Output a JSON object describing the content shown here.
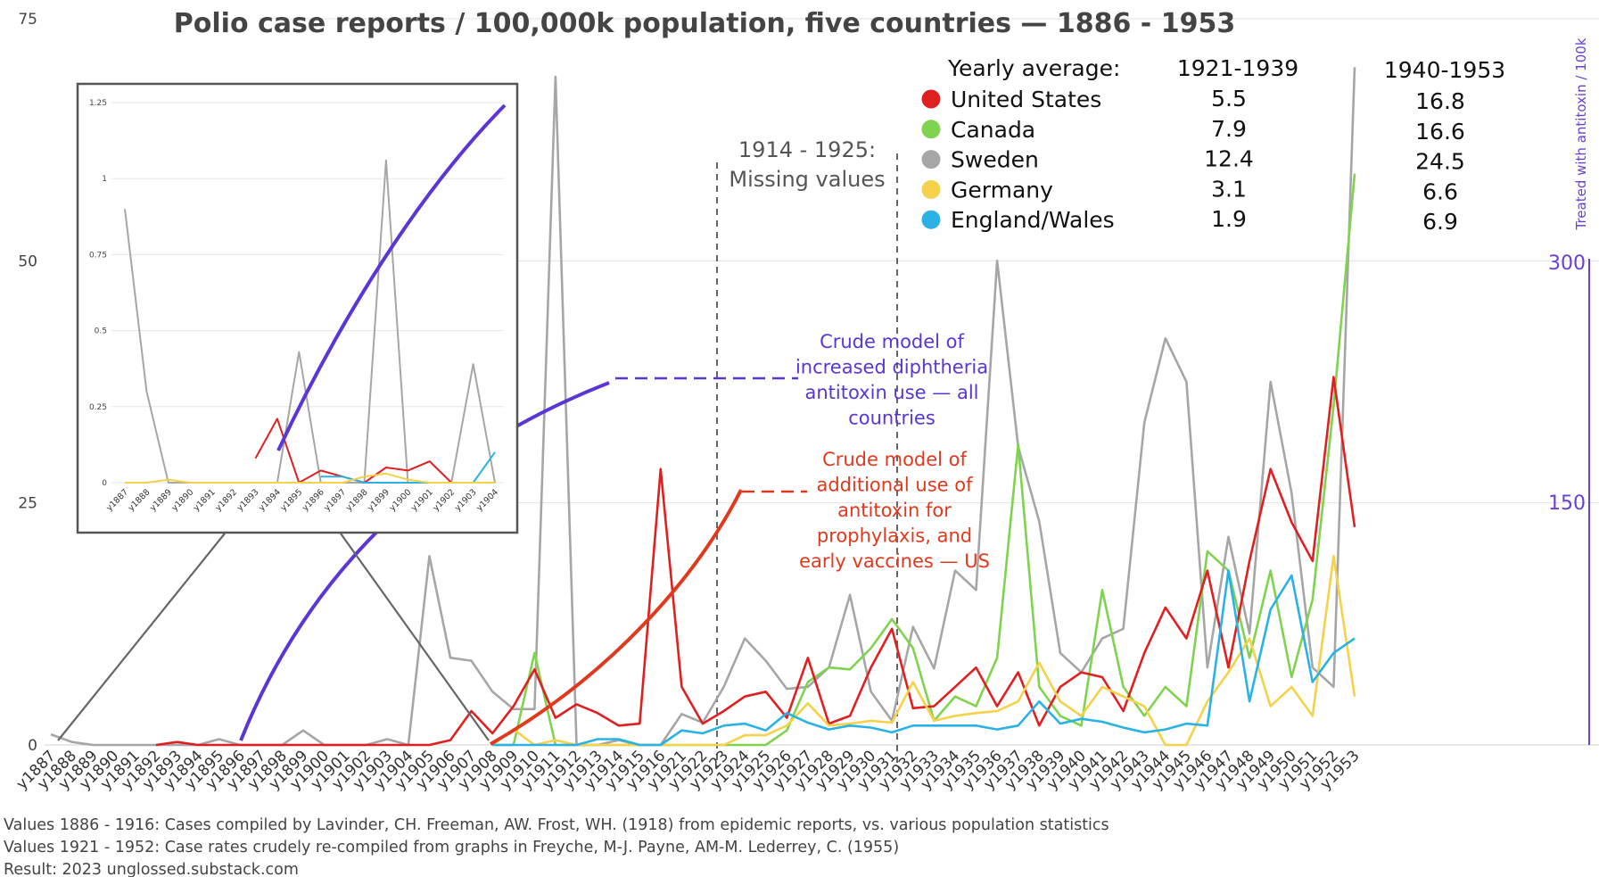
{
  "chart_data": {
    "type": "line",
    "title": "Polio case reports / 100,000k population, five countries — 1886 - 1953",
    "y_ticks": [
      "0",
      "25",
      "50",
      "75"
    ],
    "ylim": [
      0,
      75
    ],
    "right_axis": {
      "label": "Treated with  antitoxin / 100k",
      "ticks": [
        "150",
        "300"
      ],
      "color": "#6a3fd6"
    },
    "categories": [
      "y1887",
      "y1888",
      "y1889",
      "y1890",
      "y1891",
      "y1892",
      "y1893",
      "y1894",
      "y1895",
      "y1896",
      "y1897",
      "y1898",
      "y1899",
      "y1900",
      "y1901",
      "y1902",
      "y1903",
      "y1904",
      "y1905",
      "y1906",
      "y1907",
      "y1908",
      "y1909",
      "y1910",
      "y1911",
      "y1912",
      "y1913",
      "y1914",
      "y1915",
      "y1916",
      "y1921",
      "y1922",
      "y1923",
      "y1924",
      "y1925",
      "y1926",
      "y1927",
      "y1928",
      "y1929",
      "y1930",
      "y1931",
      "y1932",
      "y1933",
      "y1934",
      "y1935",
      "y1936",
      "y1937",
      "y1938",
      "y1939",
      "y1940",
      "y1941",
      "y1942",
      "y1943",
      "y1944",
      "y1945",
      "y1946",
      "y1947",
      "y1948",
      "y1949",
      "y1950",
      "y1951",
      "y1952",
      "y1953"
    ],
    "series": [
      {
        "name": "Sweden",
        "color": "#a6a6a6",
        "values": [
          1.1,
          0.3,
          0,
          0,
          0,
          0,
          0,
          0,
          0.6,
          0,
          0,
          0,
          1.5,
          0,
          0,
          0,
          0.6,
          0,
          19.5,
          9,
          8.7,
          5.5,
          3.7,
          3.7,
          69,
          0,
          0,
          0.5,
          0,
          0,
          3.2,
          2.3,
          6,
          11,
          8.7,
          5.8,
          6,
          8,
          15.5,
          5.5,
          2.5,
          12.2,
          7.9,
          18,
          16,
          50,
          30.8,
          23.1,
          9.5,
          7.5,
          11,
          12,
          33.3,
          42,
          37.5,
          8,
          21.5,
          11.5,
          37.5,
          26,
          8,
          6,
          70
        ]
      },
      {
        "name": "Canada",
        "color": "#7fd34e",
        "values": [
          null,
          null,
          null,
          null,
          null,
          null,
          null,
          null,
          null,
          null,
          null,
          null,
          null,
          null,
          null,
          null,
          null,
          null,
          null,
          null,
          null,
          0,
          0,
          9.5,
          0,
          0,
          0,
          0,
          0,
          0,
          0,
          0,
          0,
          0,
          0,
          1.5,
          6.5,
          8,
          7.8,
          10,
          13,
          10,
          2.5,
          5,
          4,
          9,
          31,
          6,
          3,
          2,
          16,
          6,
          3,
          6,
          4,
          20,
          18,
          9,
          18,
          7,
          15,
          35,
          59
        ]
      },
      {
        "name": "United States",
        "color": "#e02020",
        "values": [
          null,
          null,
          null,
          null,
          null,
          0,
          0.3,
          0,
          0,
          0,
          0,
          0,
          0,
          0,
          0,
          0,
          0,
          0,
          0,
          0.5,
          3.5,
          1.2,
          4,
          7.8,
          2.8,
          4.2,
          3.3,
          2,
          2.2,
          28.5,
          6,
          2.2,
          3.5,
          5,
          5.5,
          2.8,
          9,
          2.2,
          3,
          8,
          12,
          3.8,
          4,
          6,
          8,
          4,
          7.5,
          2,
          6,
          7.5,
          7,
          3.5,
          9.5,
          14.2,
          11,
          18,
          8,
          19,
          28.5,
          23,
          19,
          38,
          22.5
        ]
      },
      {
        "name": "Germany",
        "color": "#f5d24a",
        "values": [
          null,
          null,
          null,
          null,
          null,
          null,
          null,
          null,
          null,
          null,
          null,
          null,
          null,
          null,
          null,
          null,
          null,
          null,
          null,
          null,
          null,
          0,
          1.6,
          0,
          0.5,
          0,
          0,
          0,
          0,
          0,
          0,
          0,
          0,
          1,
          1,
          2,
          4.3,
          2,
          2.2,
          2.5,
          2.3,
          6.5,
          2.5,
          3,
          3.3,
          3.5,
          4.5,
          8.5,
          4.5,
          3,
          6,
          5,
          4,
          0,
          0,
          4.5,
          7.5,
          11,
          4,
          6,
          3,
          19.5,
          5
        ]
      },
      {
        "name": "England/Wales",
        "color": "#2ab2e6",
        "values": [
          null,
          null,
          null,
          null,
          null,
          null,
          null,
          null,
          null,
          null,
          null,
          null,
          null,
          null,
          null,
          null,
          null,
          null,
          null,
          null,
          null,
          0,
          0,
          0,
          0,
          0,
          0.6,
          0.6,
          0,
          0,
          1.5,
          1.2,
          2,
          2.2,
          1.5,
          3.3,
          2.3,
          1.6,
          2,
          1.8,
          1.3,
          2,
          2,
          2,
          2,
          1.6,
          2,
          4.5,
          2.2,
          2.7,
          2.4,
          1.8,
          1.3,
          1.6,
          2.2,
          2,
          18,
          4.5,
          14,
          17.5,
          6.5,
          9.5,
          11
        ]
      }
    ],
    "legend": {
      "header": "Yearly average:",
      "col1": "1921-1939",
      "col2": "1940-1953",
      "rows": [
        {
          "name": "United States",
          "color": "#e02020",
          "v1": "5.5",
          "v2": "16.8"
        },
        {
          "name": "Canada",
          "color": "#7fd34e",
          "v1": "7.9",
          "v2": "16.6"
        },
        {
          "name": "Sweden",
          "color": "#a6a6a6",
          "v1": "12.4",
          "v2": "24.5"
        },
        {
          "name": "Germany",
          "color": "#f5d24a",
          "v1": "3.1",
          "v2": "6.6"
        },
        {
          "name": "England/Wales",
          "color": "#2ab2e6",
          "v1": "1.9",
          "v2": "6.9"
        }
      ]
    },
    "annotations": {
      "missing": [
        "1914 - 1925:",
        "Missing values"
      ],
      "purple_model": [
        "Crude model of",
        "increased diphtheria",
        "antitoxin use — all",
        "countries"
      ],
      "red_model": [
        "Crude model of",
        "additional use of",
        "antitoxin for",
        "prophylaxis, and",
        "early vaccines — US"
      ]
    },
    "inset": {
      "ylim": [
        0,
        1.25
      ],
      "y_ticks": [
        "0",
        "0.25",
        "0.5",
        "0.75",
        "1",
        "1.25"
      ],
      "categories": [
        "y1887",
        "y1888",
        "y1889",
        "y1890",
        "y1891",
        "y1892",
        "y1893",
        "y1894",
        "y1895",
        "y1896",
        "y1897",
        "y1898",
        "y1899",
        "y1900",
        "y1901",
        "y1902",
        "y1903",
        "y1904"
      ],
      "series": [
        {
          "name": "Sweden",
          "color": "#a6a6a6",
          "values": [
            0.9,
            0.3,
            0,
            0,
            0,
            0,
            0,
            0,
            0.43,
            0,
            0,
            0,
            1.06,
            0,
            0,
            0,
            0.39,
            0
          ]
        },
        {
          "name": "United States",
          "color": "#e02020",
          "values": [
            null,
            null,
            null,
            null,
            null,
            null,
            0.08,
            0.21,
            0,
            0.04,
            0.02,
            0,
            0.05,
            0.04,
            0.07,
            0,
            0,
            0
          ]
        },
        {
          "name": "England/Wales",
          "color": "#2ab2e6",
          "values": [
            null,
            null,
            null,
            null,
            null,
            null,
            null,
            null,
            null,
            0.02,
            0.02,
            0,
            0,
            0,
            0,
            0,
            0,
            0.1
          ]
        },
        {
          "name": "Germany",
          "color": "#f5d24a",
          "values": [
            0,
            0,
            0.01,
            0,
            0,
            0,
            0,
            0,
            0,
            0,
            0,
            0.02,
            0.03,
            0.01,
            0,
            0,
            0,
            0
          ]
        }
      ]
    },
    "footer": [
      "Values 1886 - 1916: Cases compiled by Lavinder, CH. Freeman, AW. Frost, WH. (1918) from epidemic reports, vs. various population statistics",
      "Values 1921 - 1952: Case rates crudely re-compiled from graphs in Freyche, M-J. Payne, AM-M. Lederrey, C. (1955)",
      "Result: 2023 unglossed.substack.com"
    ]
  }
}
